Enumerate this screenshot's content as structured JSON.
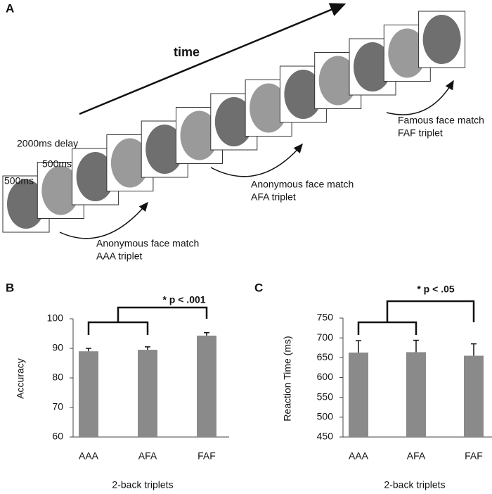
{
  "panel_labels": [
    "A",
    "B",
    "C"
  ],
  "panel_a": {
    "time": "time",
    "first_duration": "500ms",
    "delay": "2000ms delay",
    "second_duration": "500ms",
    "matches": [
      {
        "label": "Anonymous face match",
        "triplet": "AAA triplet"
      },
      {
        "label": "Anonymous face match",
        "triplet": "AFA triplet"
      },
      {
        "label": "Famous face match",
        "triplet": "FAF triplet"
      }
    ]
  },
  "chart_data": [
    {
      "type": "bar",
      "categories": [
        "AAA",
        "AFA",
        "FAF"
      ],
      "values": [
        89,
        89.5,
        94.3
      ],
      "errors": [
        1,
        1,
        1
      ],
      "color": "#8a8a8a",
      "xlabel": "2-back triplets",
      "ylabel": "Accuracy",
      "ylim": [
        60,
        100
      ],
      "yticks": [
        60,
        70,
        80,
        90,
        100
      ],
      "annotation": "* p < .001"
    },
    {
      "type": "bar",
      "categories": [
        "AAA",
        "AFA",
        "FAF"
      ],
      "values": [
        663,
        664,
        655
      ],
      "errors": [
        30,
        30,
        30
      ],
      "color": "#8a8a8a",
      "xlabel": "2-back triplets",
      "ylabel": "Reaction Time (ms)",
      "ylim": [
        450,
        750
      ],
      "yticks": [
        450,
        500,
        550,
        600,
        650,
        700,
        750
      ],
      "annotation": "* p < .05"
    }
  ]
}
